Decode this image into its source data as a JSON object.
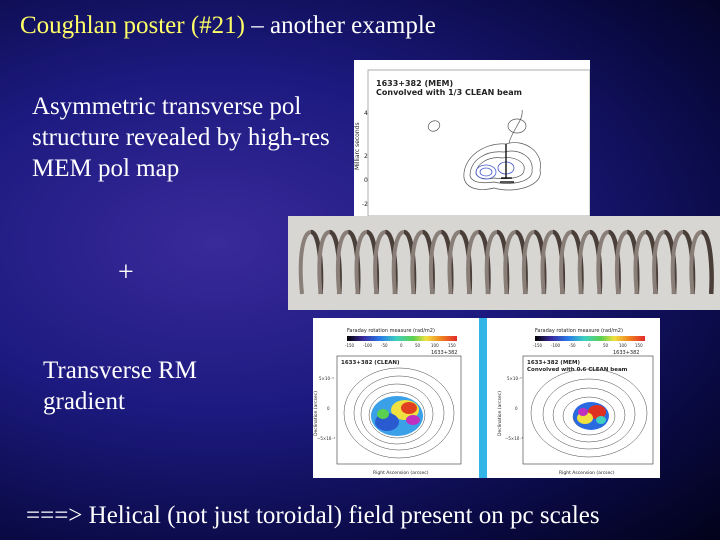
{
  "slide": {
    "title_highlight": "Coughlan poster (#21)",
    "title_rest": " – another example",
    "text_block_1": "Asymmetric transverse pol structure revealed by high-res MEM pol map",
    "plus_sign": "+",
    "text_block_2": "Transverse RM gradient",
    "conclusion": "===> Helical (not just toroidal) field present on pc scales"
  },
  "mem_map": {
    "caption_line1": "1633+382 (MEM)",
    "caption_line2": "Convolved with 1/3 CLEAN beam",
    "ylabel": "Milliarc seconds",
    "yticks": [
      "4",
      "2",
      "0",
      "-2"
    ]
  },
  "rm_maps": {
    "left": {
      "colorbar_title": "Faraday rotation measure (rad/m2)",
      "colorbar_ticks": [
        "-150",
        "-100",
        "-50",
        "0",
        "50",
        "100",
        "150"
      ],
      "source_label": "1633+382",
      "caption": "1633+382 (CLEAN)",
      "ylabel": "Declination (arcsec)",
      "xlabel": "Right Ascension (arcsec)",
      "yticks": [
        "5×10⁻³",
        "0",
        "−5×10⁻³"
      ]
    },
    "right": {
      "colorbar_title": "Faraday rotation measure (rad/m2)",
      "colorbar_ticks": [
        "-150",
        "-100",
        "-50",
        "0",
        "50",
        "100",
        "150"
      ],
      "source_label": "1633+382",
      "caption_line1": "1633+382 (MEM)",
      "caption_line2": "Convolved with 0.6 CLEAN beam",
      "ylabel": "Declination (arcsec)",
      "xlabel": "Right Ascension (arcsec)",
      "yticks": [
        "5×10⁻³",
        "0",
        "−5×10⁻³"
      ]
    }
  },
  "colors": {
    "title_highlight": "#ffff66",
    "text": "#ffffff",
    "divider": "#33b5e8"
  }
}
